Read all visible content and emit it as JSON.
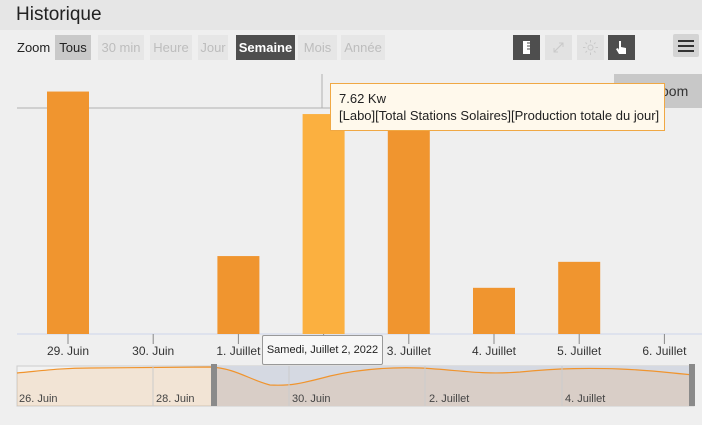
{
  "header": {
    "title": "Historique"
  },
  "toolbar": {
    "zoom_label": "Zoom",
    "ranges": [
      {
        "label": "Tous",
        "state": "selected"
      },
      {
        "label": "30 min",
        "state": "disabled"
      },
      {
        "label": "Heure",
        "state": "disabled"
      },
      {
        "label": "Jour",
        "state": "disabled"
      },
      {
        "label": "Semaine",
        "state": "active"
      },
      {
        "label": "Mois",
        "state": "disabled"
      },
      {
        "label": "Année",
        "state": "disabled"
      }
    ],
    "tools": [
      "ruler-icon",
      "collapse-arrows-icon",
      "sun-icon",
      "hand-pointer-icon"
    ],
    "menu_icon": "hamburger-menu-icon"
  },
  "reset_zoom": {
    "label": "oom"
  },
  "tooltip": {
    "value": "7.62 Kw",
    "series": "[Labo][Total Stations Solaires][Production totale du jour]"
  },
  "crosshair_label": "Samedi, Juillet 2, 2022",
  "navigator": {
    "labels": [
      "26. Juin",
      "28. Juin",
      "30. Juin",
      "2. Juillet",
      "4. Juillet"
    ]
  },
  "colors": {
    "bar": "#f0952f",
    "bar_highlight": "#fbb040",
    "selected_button": "#4e4e4e",
    "navigator_mask": "#d5d9e2"
  },
  "chart_data": {
    "type": "bar",
    "categories": [
      "29. Juin",
      "30. Juin",
      "1. Juillet",
      "2. Juillet",
      "3. Juillet",
      "4. Juillet",
      "5. Juillet",
      "6. Juillet"
    ],
    "values": [
      8.4,
      null,
      2.7,
      7.62,
      7.9,
      1.6,
      2.5,
      null
    ],
    "highlight_index": 3,
    "ylim": [
      0,
      8.8
    ]
  }
}
